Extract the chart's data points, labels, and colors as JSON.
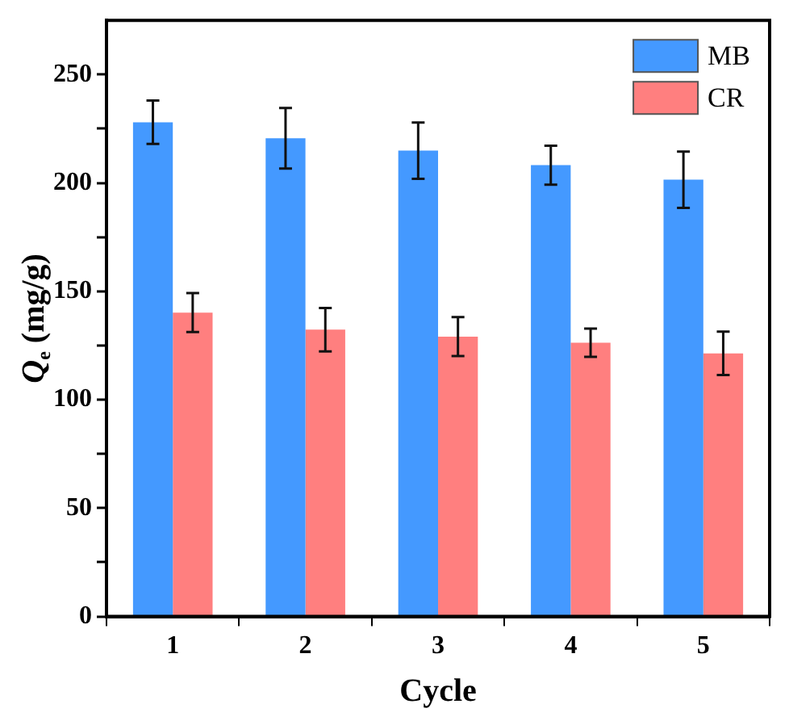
{
  "chart_data": {
    "type": "bar",
    "xlabel": "Cycle",
    "ylabel": "Q$_{e}$ (mg/g)",
    "categories": [
      "1",
      "2",
      "3",
      "4",
      "5"
    ],
    "series": [
      {
        "name": "MB",
        "color": "#4499ff",
        "values": [
          228,
          220.6,
          214.9,
          208.2,
          201.5
        ],
        "errors": [
          10,
          14,
          13,
          9,
          13
        ]
      },
      {
        "name": "CR",
        "color": "#ff7f7f",
        "values": [
          140.2,
          132.3,
          129.1,
          126.3,
          121.4
        ],
        "errors": [
          9,
          10,
          9,
          6.5,
          10
        ]
      }
    ],
    "ylim": [
      0,
      275
    ],
    "yticks": [
      0,
      {
        "value": 25,
        "label": null
      },
      50,
      {
        "value": 75,
        "label": null
      },
      100,
      {
        "value": 125,
        "label": null
      },
      150,
      {
        "value": 175,
        "label": null
      },
      200,
      {
        "value": 225,
        "label": null
      },
      250
    ],
    "legend": "top right"
  }
}
